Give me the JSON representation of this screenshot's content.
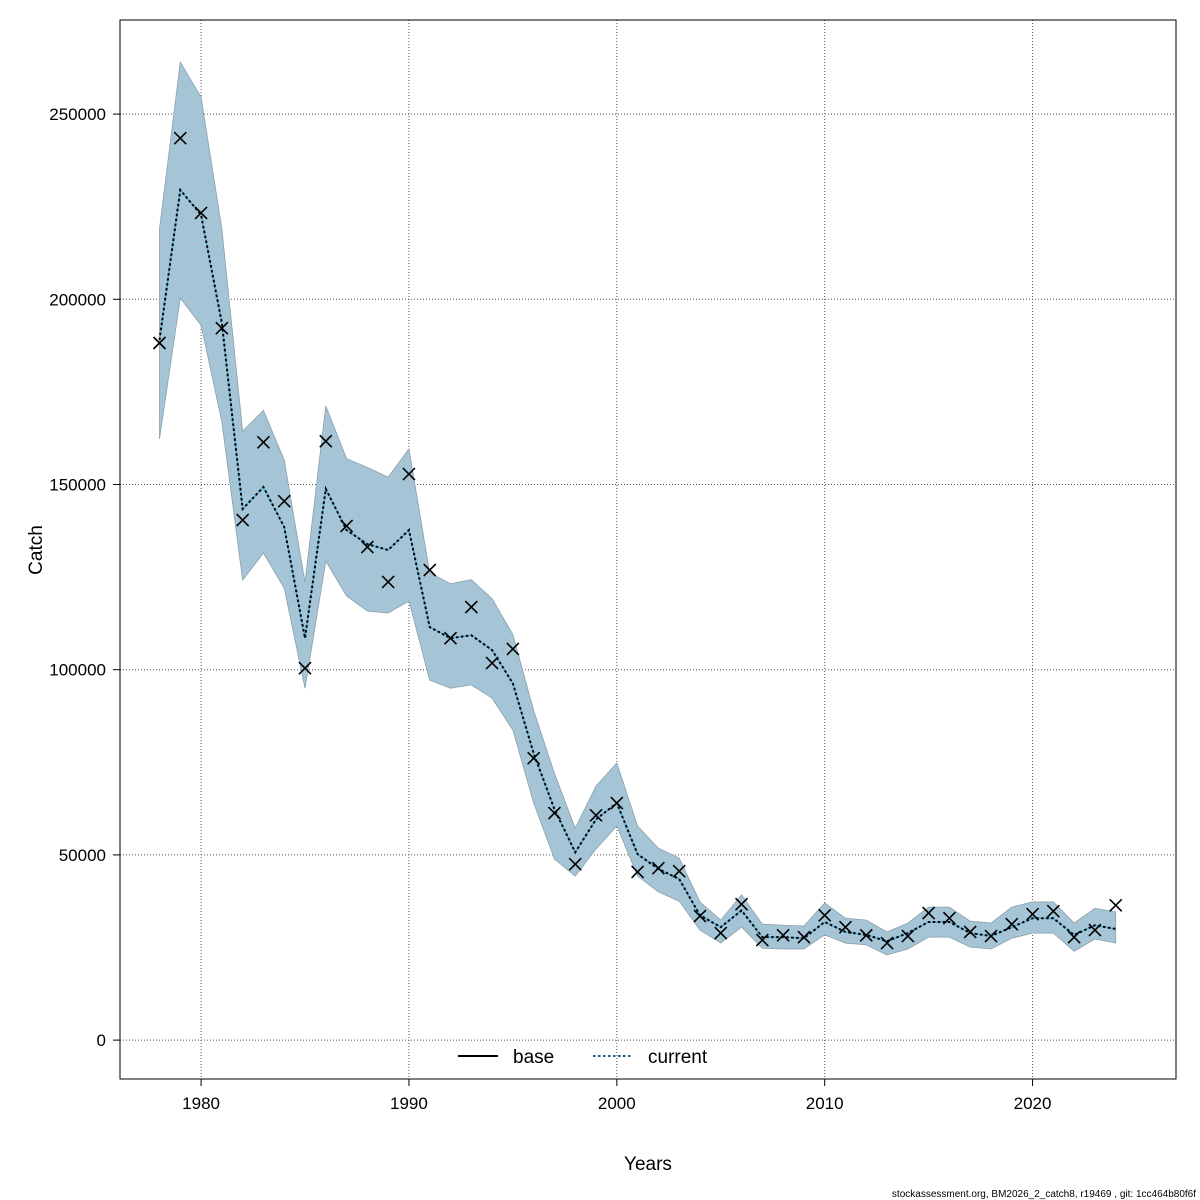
{
  "chart_data": {
    "type": "line",
    "title": "",
    "xlabel": "Years",
    "ylabel": "Catch",
    "xlim": [
      1976.1,
      2026.9
    ],
    "ylim": [
      -10500,
      275400
    ],
    "grid": true,
    "legend_position": "bottom-center",
    "x_ticks": [
      1980,
      1990,
      2000,
      2010,
      2020
    ],
    "x_tick_labels": [
      "1980",
      "1990",
      "2000",
      "2010",
      "2020"
    ],
    "y_ticks": [
      0,
      50000,
      100000,
      150000,
      200000,
      250000
    ],
    "y_tick_labels": [
      "0",
      "50000",
      "100000",
      "150000",
      "200000",
      "250000"
    ],
    "legend": [
      {
        "name": "base",
        "style": "solid",
        "color": "#000000"
      },
      {
        "name": "current",
        "style": "dotted",
        "color": "#1a5e8a"
      }
    ],
    "years": [
      1978,
      1979,
      1980,
      1981,
      1982,
      1983,
      1984,
      1985,
      1986,
      1987,
      1988,
      1989,
      1990,
      1991,
      1992,
      1993,
      1994,
      1995,
      1996,
      1997,
      1998,
      1999,
      2000,
      2001,
      2002,
      2003,
      2004,
      2005,
      2006,
      2007,
      2008,
      2009,
      2010,
      2011,
      2012,
      2013,
      2014,
      2015,
      2016,
      2017,
      2018,
      2019,
      2020,
      2021,
      2022,
      2023,
      2024
    ],
    "series": [
      {
        "name": "current",
        "kind": "estimate",
        "values": [
          189000,
          229500,
          222800,
          193600,
          143400,
          149300,
          138500,
          108500,
          148800,
          137700,
          133900,
          132300,
          137700,
          111500,
          108500,
          109300,
          105300,
          96300,
          77400,
          62300,
          50700,
          59600,
          64000,
          50200,
          46200,
          43500,
          33700,
          30500,
          35000,
          27800,
          27800,
          27500,
          31900,
          29200,
          28400,
          26700,
          28900,
          31900,
          31900,
          28900,
          28100,
          30500,
          32900,
          32900,
          28400,
          31000,
          30000
        ]
      },
      {
        "name": "upper",
        "kind": "confidence-band",
        "values": [
          219000,
          264000,
          254600,
          219000,
          164400,
          170000,
          156600,
          123600,
          171200,
          157000,
          154600,
          152000,
          159600,
          126100,
          123200,
          124300,
          119200,
          109500,
          89000,
          72000,
          57200,
          68600,
          74800,
          57800,
          51800,
          49100,
          37300,
          32400,
          39200,
          31300,
          31000,
          30800,
          37000,
          32900,
          32400,
          29200,
          31600,
          35900,
          35900,
          32100,
          31600,
          35900,
          37300,
          37300,
          31600,
          35600,
          34600
        ]
      },
      {
        "name": "lower",
        "kind": "confidence-band",
        "values": [
          162300,
          200300,
          193000,
          166900,
          124200,
          131500,
          122000,
          95000,
          129300,
          119900,
          115800,
          115300,
          118500,
          97200,
          95000,
          95900,
          92300,
          83700,
          64000,
          48900,
          44300,
          51600,
          57800,
          44300,
          40000,
          37500,
          29700,
          26200,
          30500,
          24800,
          24600,
          24600,
          28400,
          26200,
          25700,
          23000,
          24600,
          27800,
          27800,
          25100,
          24600,
          27500,
          28900,
          28900,
          24000,
          27300,
          26200
        ]
      },
      {
        "name": "observed",
        "kind": "points",
        "values": [
          188200,
          243500,
          223300,
          192200,
          140400,
          161400,
          145500,
          100400,
          161700,
          138800,
          133100,
          123700,
          152800,
          126900,
          108500,
          116900,
          101800,
          105600,
          76100,
          61300,
          47500,
          60700,
          64000,
          45400,
          46400,
          45600,
          33500,
          28900,
          36700,
          27000,
          28300,
          27800,
          33700,
          30500,
          28300,
          26200,
          28100,
          34300,
          32900,
          29200,
          28100,
          31300,
          34000,
          34800,
          27800,
          29700,
          36400
        ]
      }
    ],
    "colors": {
      "band": "#a5c5d6",
      "band_edge": "#8aa0ab",
      "line_light": "#4fb3e0",
      "line_dots": "#000000",
      "points": "#000000"
    }
  },
  "footer": "stockassessment.org, BM2026_2_catch8, r19469 , git: 1cc464b80f6f"
}
